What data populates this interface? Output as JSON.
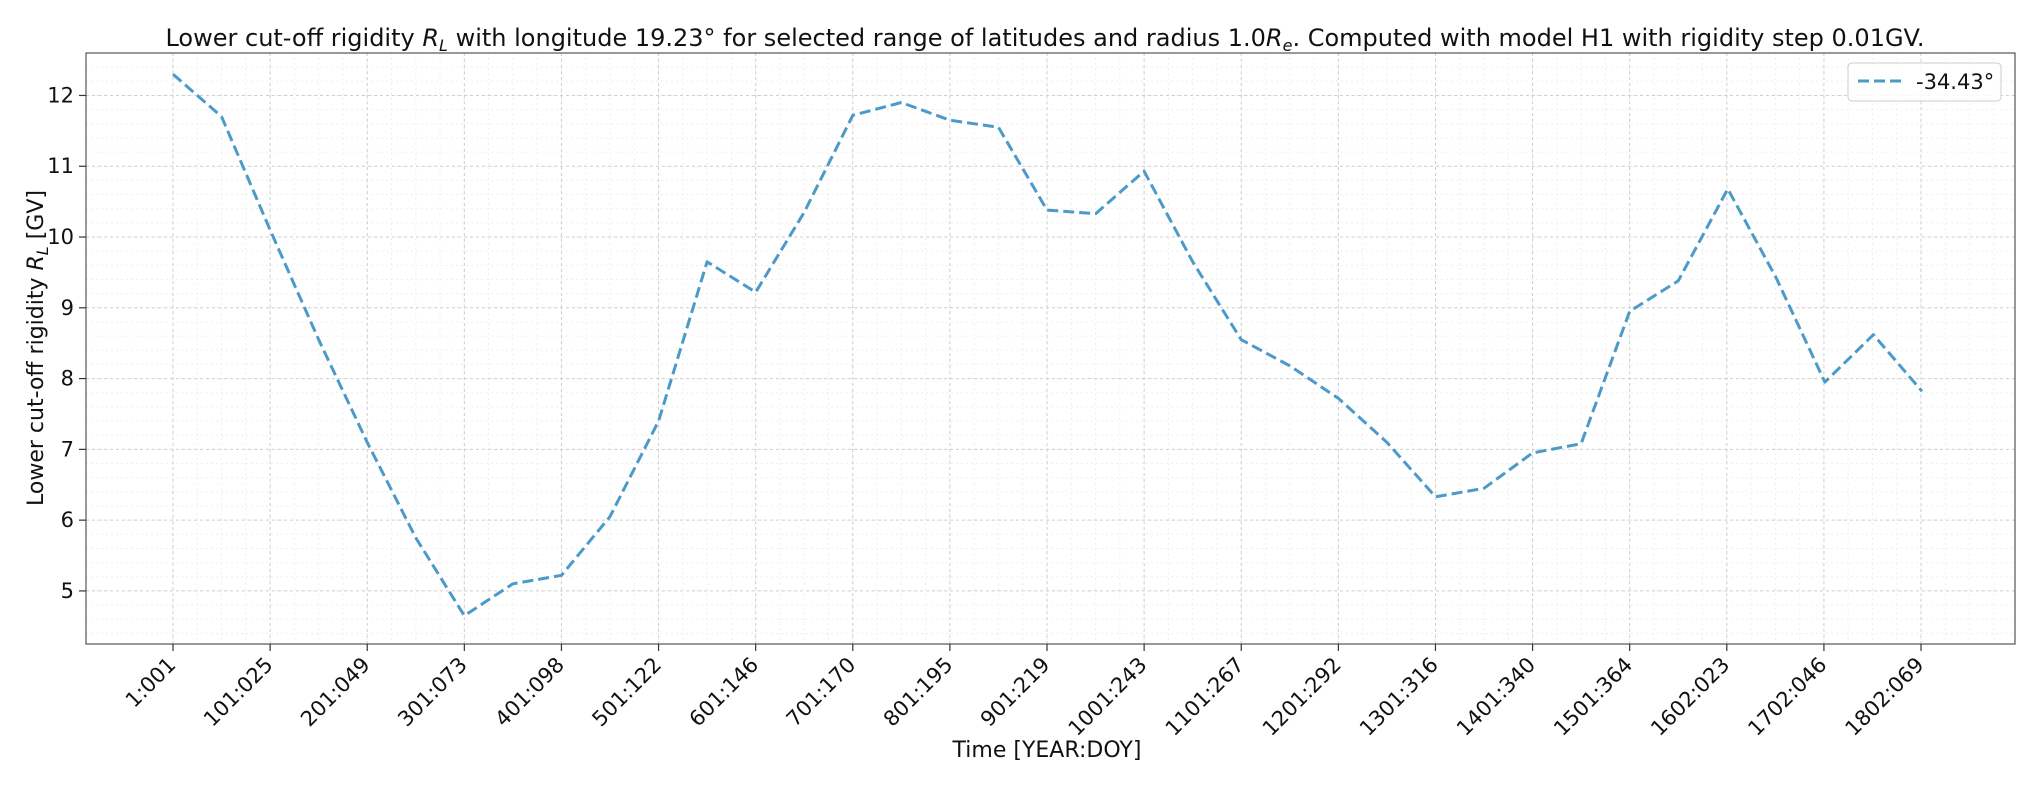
{
  "chart_data": {
    "type": "line",
    "title": "Lower cut-off rigidity R_L with longitude 19.23° for selected range of latitudes and radius 1.0R_e. Computed with model H1 with rigidity step 0.01GV.",
    "xlabel": "Time [YEAR:DOY]",
    "ylabel": "Lower cut-off rigidity R_L [GV]",
    "x_tick_labels": [
      "1:001",
      "101:025",
      "201:049",
      "301:073",
      "401:098",
      "501:122",
      "601:146",
      "701:170",
      "801:195",
      "901:219",
      "1001:243",
      "1101:267",
      "1201:292",
      "1301:316",
      "1401:340",
      "1501:364",
      "1602:023",
      "1702:046",
      "1802:069"
    ],
    "y_ticks": [
      5,
      6,
      7,
      8,
      9,
      10,
      11,
      12
    ],
    "ylim": [
      4.25,
      12.6
    ],
    "grid": true,
    "legend_position": "top-right",
    "series": [
      {
        "name": "-34.43°",
        "color": "#4c9ac9",
        "line_style": "dashed",
        "x": [
          1,
          51,
          101,
          151,
          201,
          251,
          301,
          351,
          401,
          451,
          501,
          551,
          601,
          651,
          701,
          751,
          801,
          851,
          901,
          951,
          1001,
          1051,
          1101,
          1151,
          1201,
          1251,
          1301,
          1351,
          1401,
          1451,
          1501,
          1551,
          1602,
          1652,
          1702,
          1752,
          1802
        ],
        "values": [
          12.3,
          11.7,
          10.1,
          8.55,
          7.1,
          5.75,
          4.65,
          5.1,
          5.22,
          6.05,
          7.4,
          9.65,
          9.22,
          10.35,
          11.72,
          11.9,
          11.65,
          11.55,
          10.38,
          10.33,
          10.93,
          9.65,
          8.55,
          8.18,
          7.72,
          7.1,
          6.33,
          6.45,
          6.95,
          7.08,
          8.95,
          9.38,
          10.68,
          9.42,
          7.95,
          8.62,
          7.82
        ]
      }
    ]
  }
}
